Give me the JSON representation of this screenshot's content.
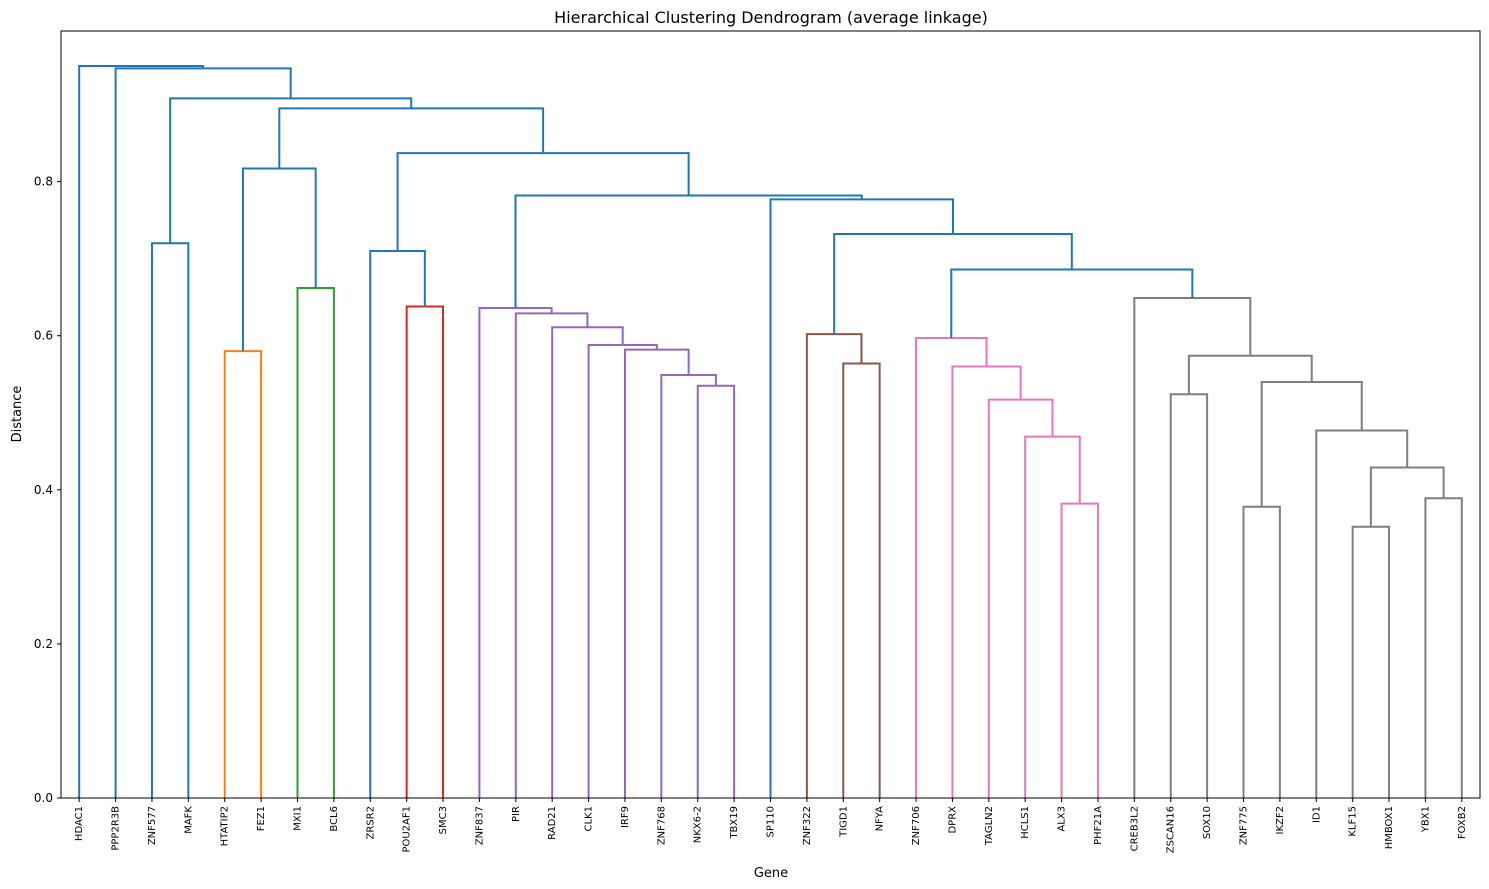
{
  "chart_data": {
    "type": "dendrogram",
    "title": "Hierarchical Clustering Dendrogram (average linkage)",
    "xlabel": "Gene",
    "ylabel": "Distance",
    "ylim": [
      0,
      1.0
    ],
    "yticks": [
      {
        "value": 0.0,
        "label": "0.0"
      },
      {
        "value": 0.2,
        "label": "0.2"
      },
      {
        "value": 0.4,
        "label": "0.4"
      },
      {
        "value": 0.6,
        "label": "0.6"
      },
      {
        "value": 0.8,
        "label": "0.8"
      }
    ],
    "leaves": [
      "HDAC1",
      "PPP2R3B",
      "ZNF577",
      "MAFK",
      "HTATIP2",
      "FEZ1",
      "MXI1",
      "BCL6",
      "ZRSR2",
      "POU2AF1",
      "SMC3",
      "ZNF837",
      "PIR",
      "RAD21",
      "CLK1",
      "IRF9",
      "ZNF768",
      "NKX6-2",
      "TBX19",
      "SP110",
      "ZNF322",
      "TIGD1",
      "NFYA",
      "ZNF706",
      "DPRX",
      "TAGLN2",
      "HCLS1",
      "ALX3",
      "PHF21A",
      "CREB3L2",
      "ZSCAN16",
      "SOX10",
      "ZNF775",
      "IKZF2",
      "ID1",
      "KLF15",
      "HMBOX1",
      "YBX1",
      "FOXB2"
    ],
    "colors": {
      "above": "#1f77b4",
      "orange": "#ff7f0e",
      "green": "#2ca02c",
      "red": "#d62728",
      "purple": "#9467bd",
      "brown": "#8c564b",
      "pink": "#e377c2",
      "gray": "#7f7f7f"
    },
    "merges": [
      {
        "id": "c1",
        "left": "HTATIP2",
        "right": "FEZ1",
        "height": 0.58,
        "color": "orange"
      },
      {
        "id": "c2",
        "left": "MXI1",
        "right": "BCL6",
        "height": 0.662,
        "color": "green"
      },
      {
        "id": "c3",
        "left": "POU2AF1",
        "right": "SMC3",
        "height": 0.638,
        "color": "red"
      },
      {
        "id": "p1",
        "left": "NKX6-2",
        "right": "TBX19",
        "height": 0.535,
        "color": "purple"
      },
      {
        "id": "p2",
        "left": "ZNF768",
        "right": "p1",
        "height": 0.549,
        "color": "purple"
      },
      {
        "id": "p3",
        "left": "IRF9",
        "right": "p2",
        "height": 0.582,
        "color": "purple"
      },
      {
        "id": "p4",
        "left": "CLK1",
        "right": "p3",
        "height": 0.588,
        "color": "purple"
      },
      {
        "id": "p5",
        "left": "RAD21",
        "right": "p4",
        "height": 0.611,
        "color": "purple"
      },
      {
        "id": "p6",
        "left": "PIR",
        "right": "p5",
        "height": 0.629,
        "color": "purple"
      },
      {
        "id": "p7",
        "left": "ZNF837",
        "right": "p6",
        "height": 0.636,
        "color": "purple"
      },
      {
        "id": "b1",
        "left": "TIGD1",
        "right": "NFYA",
        "height": 0.564,
        "color": "brown"
      },
      {
        "id": "b2",
        "left": "ZNF322",
        "right": "b1",
        "height": 0.602,
        "color": "brown"
      },
      {
        "id": "k1",
        "left": "ALX3",
        "right": "PHF21A",
        "height": 0.382,
        "color": "pink"
      },
      {
        "id": "k2",
        "left": "HCLS1",
        "right": "k1",
        "height": 0.469,
        "color": "pink"
      },
      {
        "id": "k3",
        "left": "TAGLN2",
        "right": "k2",
        "height": 0.517,
        "color": "pink"
      },
      {
        "id": "k4",
        "left": "DPRX",
        "right": "k3",
        "height": 0.56,
        "color": "pink"
      },
      {
        "id": "k5",
        "left": "ZNF706",
        "right": "k4",
        "height": 0.597,
        "color": "pink"
      },
      {
        "id": "g1",
        "left": "KLF15",
        "right": "HMBOX1",
        "height": 0.352,
        "color": "gray"
      },
      {
        "id": "g2",
        "left": "YBX1",
        "right": "FOXB2",
        "height": 0.389,
        "color": "gray"
      },
      {
        "id": "g3",
        "left": "g1",
        "right": "g2",
        "height": 0.429,
        "color": "gray"
      },
      {
        "id": "g4",
        "left": "ID1",
        "right": "g3",
        "height": 0.477,
        "color": "gray"
      },
      {
        "id": "g5",
        "left": "ZNF775",
        "right": "IKZF2",
        "height": 0.378,
        "color": "gray"
      },
      {
        "id": "g6",
        "left": "g5",
        "right": "g4",
        "height": 0.54,
        "color": "gray"
      },
      {
        "id": "g7",
        "left": "ZSCAN16",
        "right": "SOX10",
        "height": 0.524,
        "color": "gray"
      },
      {
        "id": "g8",
        "left": "g7",
        "right": "g6",
        "height": 0.574,
        "color": "gray"
      },
      {
        "id": "g9",
        "left": "CREB3L2",
        "right": "g8",
        "height": 0.649,
        "color": "gray"
      },
      {
        "id": "u1",
        "left": "k5",
        "right": "g9",
        "height": 0.686,
        "color": "above"
      },
      {
        "id": "u2",
        "left": "b2",
        "right": "u1",
        "height": 0.732,
        "color": "above"
      },
      {
        "id": "u3",
        "left": "SP110",
        "right": "u2",
        "height": 0.777,
        "color": "above"
      },
      {
        "id": "u4",
        "left": "p7",
        "right": "u3",
        "height": 0.782,
        "color": "above"
      },
      {
        "id": "u5",
        "left": "ZRSR2",
        "right": "c3",
        "height": 0.71,
        "color": "above"
      },
      {
        "id": "u6",
        "left": "u5",
        "right": "u4",
        "height": 0.837,
        "color": "above"
      },
      {
        "id": "u7",
        "left": "c1",
        "right": "c2",
        "height": 0.817,
        "color": "above"
      },
      {
        "id": "u8",
        "left": "u7",
        "right": "u6",
        "height": 0.895,
        "color": "above"
      },
      {
        "id": "u9",
        "left": "ZNF577",
        "right": "MAFK",
        "height": 0.72,
        "color": "above"
      },
      {
        "id": "u10",
        "left": "u9",
        "right": "u8",
        "height": 0.908,
        "color": "above"
      },
      {
        "id": "u11",
        "left": "PPP2R3B",
        "right": "u10",
        "height": 0.947,
        "color": "above"
      },
      {
        "id": "u12",
        "left": "HDAC1",
        "right": "u11",
        "height": 0.95,
        "color": "above"
      }
    ]
  }
}
